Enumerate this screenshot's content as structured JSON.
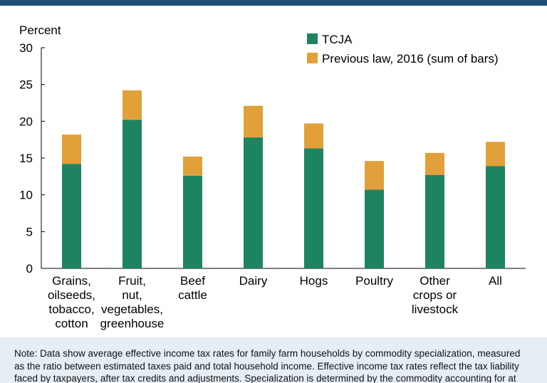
{
  "chart_data": {
    "type": "bar",
    "stacked": true,
    "ylabel": "Percent",
    "ylim": [
      0,
      30
    ],
    "yticks": [
      0,
      5,
      10,
      15,
      20,
      25,
      30
    ],
    "categories": [
      [
        "Grains,",
        "oilseeds,",
        "tobacco,",
        "cotton"
      ],
      [
        "Fruit,",
        "nut,",
        "vegetables,",
        "greenhouse"
      ],
      [
        "Beef",
        "cattle"
      ],
      [
        "Dairy"
      ],
      [
        "Hogs"
      ],
      [
        "Poultry"
      ],
      [
        "Other",
        "crops or",
        "livestock"
      ],
      [
        "All"
      ]
    ],
    "series": [
      {
        "name": "TCJA",
        "color": "#1e8460",
        "values": [
          14.2,
          20.2,
          12.6,
          17.8,
          16.3,
          10.7,
          12.7,
          13.9
        ]
      },
      {
        "name": "Previous law, 2016 (sum of bars)",
        "color": "#e2a03a",
        "totals": [
          18.2,
          24.2,
          15.2,
          22.1,
          19.7,
          14.6,
          15.7,
          17.2
        ]
      }
    ],
    "legend_position": "top-right"
  },
  "note": "Note: Data show average effective income tax rates for family farm households by commodity specialization, measured as the ratio between estimated taxes paid and total household income. Effective income tax rates reflect the tax liability faced by taxpayers, after tax credits and adjustments. Specialization is determined by the commodity accounting for at"
}
